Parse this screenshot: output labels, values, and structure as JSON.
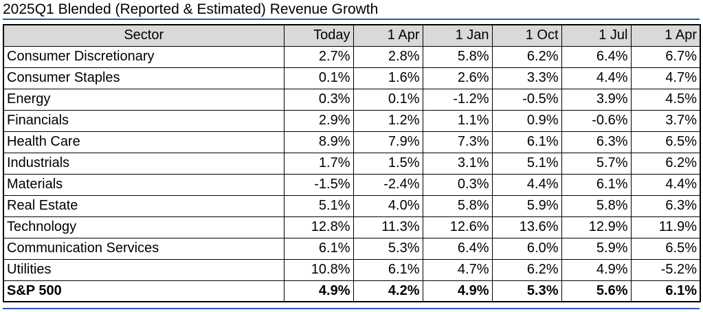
{
  "title": "2025Q1 Blended (Reported & Estimated) Revenue Growth",
  "colors": {
    "rule": "#2f52b4",
    "header_bg": "#d9d9d9",
    "border": "#000000"
  },
  "table": {
    "columns": [
      "Sector",
      "Today",
      "1 Apr",
      "1 Jan",
      "1 Oct",
      "1 Jul",
      "1 Apr"
    ],
    "rows": [
      {
        "sector": "Consumer Discretionary",
        "values": [
          "2.7%",
          "2.8%",
          "5.8%",
          "6.2%",
          "6.4%",
          "6.7%"
        ]
      },
      {
        "sector": "Consumer Staples",
        "values": [
          "0.1%",
          "1.6%",
          "2.6%",
          "3.3%",
          "4.4%",
          "4.7%"
        ]
      },
      {
        "sector": "Energy",
        "values": [
          "0.3%",
          "0.1%",
          "-1.2%",
          "-0.5%",
          "3.9%",
          "4.5%"
        ]
      },
      {
        "sector": "Financials",
        "values": [
          "2.9%",
          "1.2%",
          "1.1%",
          "0.9%",
          "-0.6%",
          "3.7%"
        ]
      },
      {
        "sector": "Health Care",
        "values": [
          "8.9%",
          "7.9%",
          "7.3%",
          "6.1%",
          "6.3%",
          "6.5%"
        ]
      },
      {
        "sector": "Industrials",
        "values": [
          "1.7%",
          "1.5%",
          "3.1%",
          "5.1%",
          "5.7%",
          "6.2%"
        ]
      },
      {
        "sector": "Materials",
        "values": [
          "-1.5%",
          "-2.4%",
          "0.3%",
          "4.4%",
          "6.1%",
          "4.4%"
        ]
      },
      {
        "sector": "Real Estate",
        "values": [
          "5.1%",
          "4.0%",
          "5.8%",
          "5.9%",
          "5.8%",
          "6.3%"
        ]
      },
      {
        "sector": "Technology",
        "values": [
          "12.8%",
          "11.3%",
          "12.6%",
          "13.6%",
          "12.9%",
          "11.9%"
        ]
      },
      {
        "sector": "Communication Services",
        "values": [
          "6.1%",
          "5.3%",
          "6.4%",
          "6.0%",
          "5.9%",
          "6.5%"
        ]
      },
      {
        "sector": "Utilities",
        "values": [
          "10.8%",
          "6.1%",
          "4.7%",
          "6.2%",
          "4.9%",
          "-5.2%"
        ]
      }
    ],
    "total": {
      "sector": "S&P 500",
      "values": [
        "4.9%",
        "4.2%",
        "4.9%",
        "5.3%",
        "5.6%",
        "6.1%"
      ]
    }
  }
}
